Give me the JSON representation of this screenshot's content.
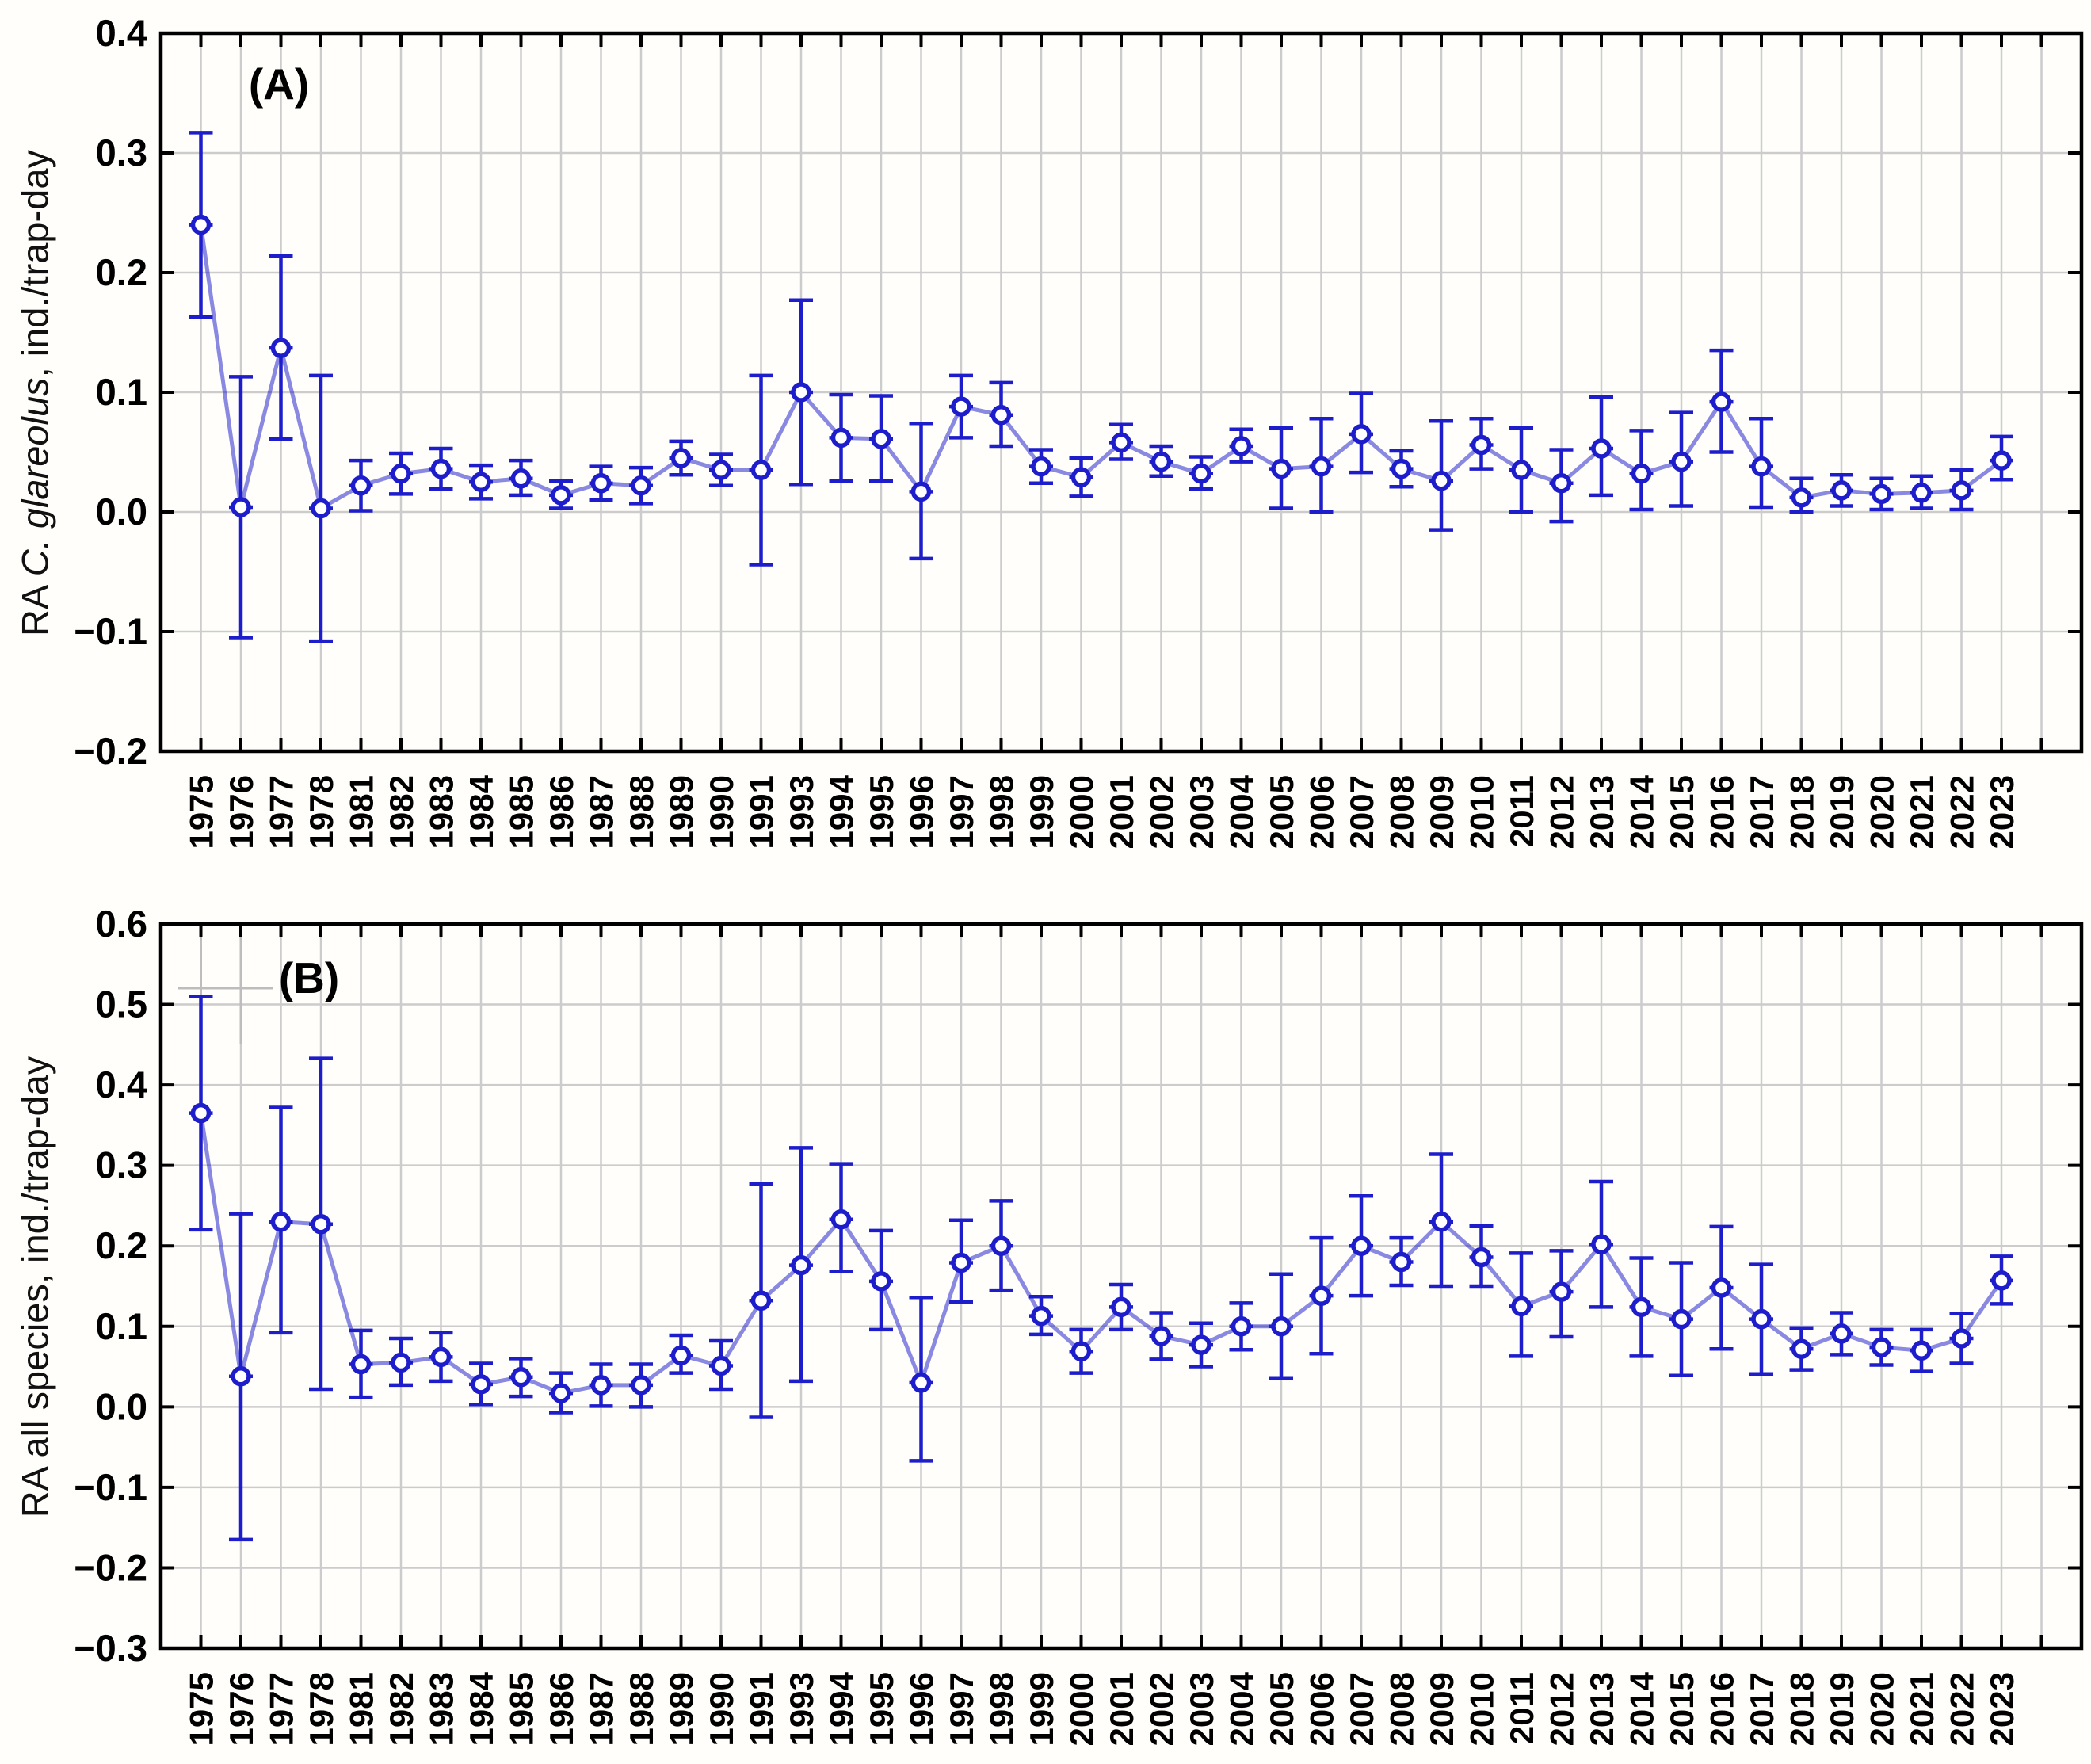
{
  "figure": {
    "background": "#fffefa",
    "accent_blue": "#1d1dcb",
    "line_blue_soft": "#6a6ade",
    "grid_color": "#cccccc",
    "axis_color": "#000000",
    "marker_style": "open-circle",
    "error_bars": "vertical-with-caps"
  },
  "chart_data": [
    {
      "type": "line",
      "panel": "A",
      "panel_label": "(A)",
      "ylabel_prefix": "RA ",
      "ylabel_italic": "C. glareolus",
      "ylabel_suffix": ", ind./trap-day",
      "xlabel": "",
      "ylim": [
        -0.2,
        0.4
      ],
      "ytick_step": 0.1,
      "ytick_labels": [
        "0.4",
        "0.3",
        "0.2",
        "0.1",
        "0.0",
        "−0.1",
        "−0.2"
      ],
      "grid": "both",
      "legend": "none",
      "categories": [
        "1975",
        "1976",
        "1977",
        "1978",
        "1981",
        "1982",
        "1983",
        "1984",
        "1985",
        "1986",
        "1987",
        "1988",
        "1989",
        "1990",
        "1991",
        "1993",
        "1994",
        "1995",
        "1996",
        "1997",
        "1998",
        "1999",
        "2000",
        "2001",
        "2002",
        "2003",
        "2004",
        "2005",
        "2006",
        "2007",
        "2008",
        "2009",
        "2010",
        "2011",
        "2012",
        "2013",
        "2014",
        "2015",
        "2016",
        "2017",
        "2018",
        "2019",
        "2020",
        "2021",
        "2022",
        "2023"
      ],
      "values": [
        0.24,
        0.004,
        0.137,
        0.003,
        0.022,
        0.032,
        0.036,
        0.025,
        0.028,
        0.014,
        0.024,
        0.022,
        0.045,
        0.035,
        0.035,
        0.1,
        0.062,
        0.061,
        0.017,
        0.088,
        0.081,
        0.038,
        0.029,
        0.058,
        0.042,
        0.032,
        0.055,
        0.036,
        0.038,
        0.065,
        0.036,
        0.026,
        0.056,
        0.035,
        0.024,
        0.053,
        0.032,
        0.042,
        0.092,
        0.038,
        0.012,
        0.018,
        0.015,
        0.016,
        0.018,
        0.043
      ],
      "err_lower": [
        0.163,
        -0.105,
        0.061,
        -0.108,
        0.001,
        0.015,
        0.019,
        0.011,
        0.014,
        0.003,
        0.01,
        0.007,
        0.031,
        0.022,
        -0.044,
        0.023,
        0.026,
        0.026,
        -0.039,
        0.062,
        0.055,
        0.024,
        0.013,
        0.044,
        0.03,
        0.019,
        0.042,
        0.003,
        0.0,
        0.033,
        0.021,
        -0.015,
        0.036,
        0.0,
        -0.008,
        0.014,
        0.002,
        0.005,
        0.05,
        0.004,
        0.0,
        0.005,
        0.002,
        0.003,
        0.002,
        0.027
      ],
      "err_upper": [
        0.317,
        0.113,
        0.214,
        0.114,
        0.043,
        0.049,
        0.053,
        0.039,
        0.043,
        0.026,
        0.038,
        0.037,
        0.059,
        0.048,
        0.114,
        0.177,
        0.098,
        0.097,
        0.074,
        0.114,
        0.108,
        0.052,
        0.045,
        0.073,
        0.055,
        0.046,
        0.069,
        0.07,
        0.078,
        0.099,
        0.051,
        0.076,
        0.078,
        0.07,
        0.052,
        0.096,
        0.068,
        0.083,
        0.135,
        0.078,
        0.028,
        0.031,
        0.028,
        0.03,
        0.035,
        0.063
      ]
    },
    {
      "type": "line",
      "panel": "B",
      "panel_label": "(B)",
      "ylabel_prefix": "RA all species, ind./trap-day",
      "ylabel_italic": "",
      "ylabel_suffix": "",
      "xlabel": "",
      "ylim": [
        -0.3,
        0.6
      ],
      "ytick_step": 0.1,
      "ytick_labels": [
        "0.6",
        "0.5",
        "0.4",
        "0.3",
        "0.2",
        "0.1",
        "0.0",
        "−0.1",
        "−0.2",
        "−0.3"
      ],
      "grid": "both",
      "legend": "none",
      "categories": [
        "1975",
        "1976",
        "1977",
        "1978",
        "1981",
        "1982",
        "1983",
        "1984",
        "1985",
        "1986",
        "1987",
        "1988",
        "1989",
        "1990",
        "1991",
        "1993",
        "1994",
        "1995",
        "1996",
        "1997",
        "1998",
        "1999",
        "2000",
        "2001",
        "2002",
        "2003",
        "2004",
        "2005",
        "2006",
        "2007",
        "2008",
        "2009",
        "2010",
        "2011",
        "2012",
        "2013",
        "2014",
        "2015",
        "2016",
        "2017",
        "2018",
        "2019",
        "2020",
        "2021",
        "2022",
        "2023"
      ],
      "values": [
        0.365,
        0.038,
        0.23,
        0.227,
        0.053,
        0.055,
        0.062,
        0.028,
        0.037,
        0.017,
        0.027,
        0.027,
        0.064,
        0.051,
        0.132,
        0.176,
        0.233,
        0.156,
        0.03,
        0.179,
        0.2,
        0.113,
        0.069,
        0.124,
        0.088,
        0.077,
        0.1,
        0.1,
        0.138,
        0.2,
        0.18,
        0.23,
        0.186,
        0.125,
        0.143,
        0.202,
        0.124,
        0.109,
        0.148,
        0.109,
        0.072,
        0.091,
        0.074,
        0.07,
        0.085,
        0.157
      ],
      "err_lower": [
        0.22,
        -0.165,
        0.092,
        0.022,
        0.012,
        0.027,
        0.032,
        0.003,
        0.013,
        -0.007,
        0.001,
        0.0,
        0.042,
        0.022,
        -0.013,
        0.032,
        0.168,
        0.096,
        -0.067,
        0.13,
        0.145,
        0.09,
        0.042,
        0.096,
        0.059,
        0.05,
        0.071,
        0.035,
        0.066,
        0.138,
        0.151,
        0.15,
        0.15,
        0.063,
        0.087,
        0.124,
        0.063,
        0.039,
        0.072,
        0.041,
        0.046,
        0.065,
        0.052,
        0.044,
        0.054,
        0.128
      ],
      "err_upper": [
        0.51,
        0.24,
        0.372,
        0.433,
        0.095,
        0.085,
        0.092,
        0.054,
        0.06,
        0.042,
        0.053,
        0.053,
        0.089,
        0.082,
        0.277,
        0.322,
        0.302,
        0.219,
        0.136,
        0.232,
        0.256,
        0.137,
        0.096,
        0.152,
        0.117,
        0.104,
        0.129,
        0.165,
        0.21,
        0.262,
        0.21,
        0.314,
        0.225,
        0.191,
        0.194,
        0.28,
        0.185,
        0.179,
        0.224,
        0.177,
        0.098,
        0.117,
        0.096,
        0.096,
        0.116,
        0.187
      ]
    }
  ]
}
